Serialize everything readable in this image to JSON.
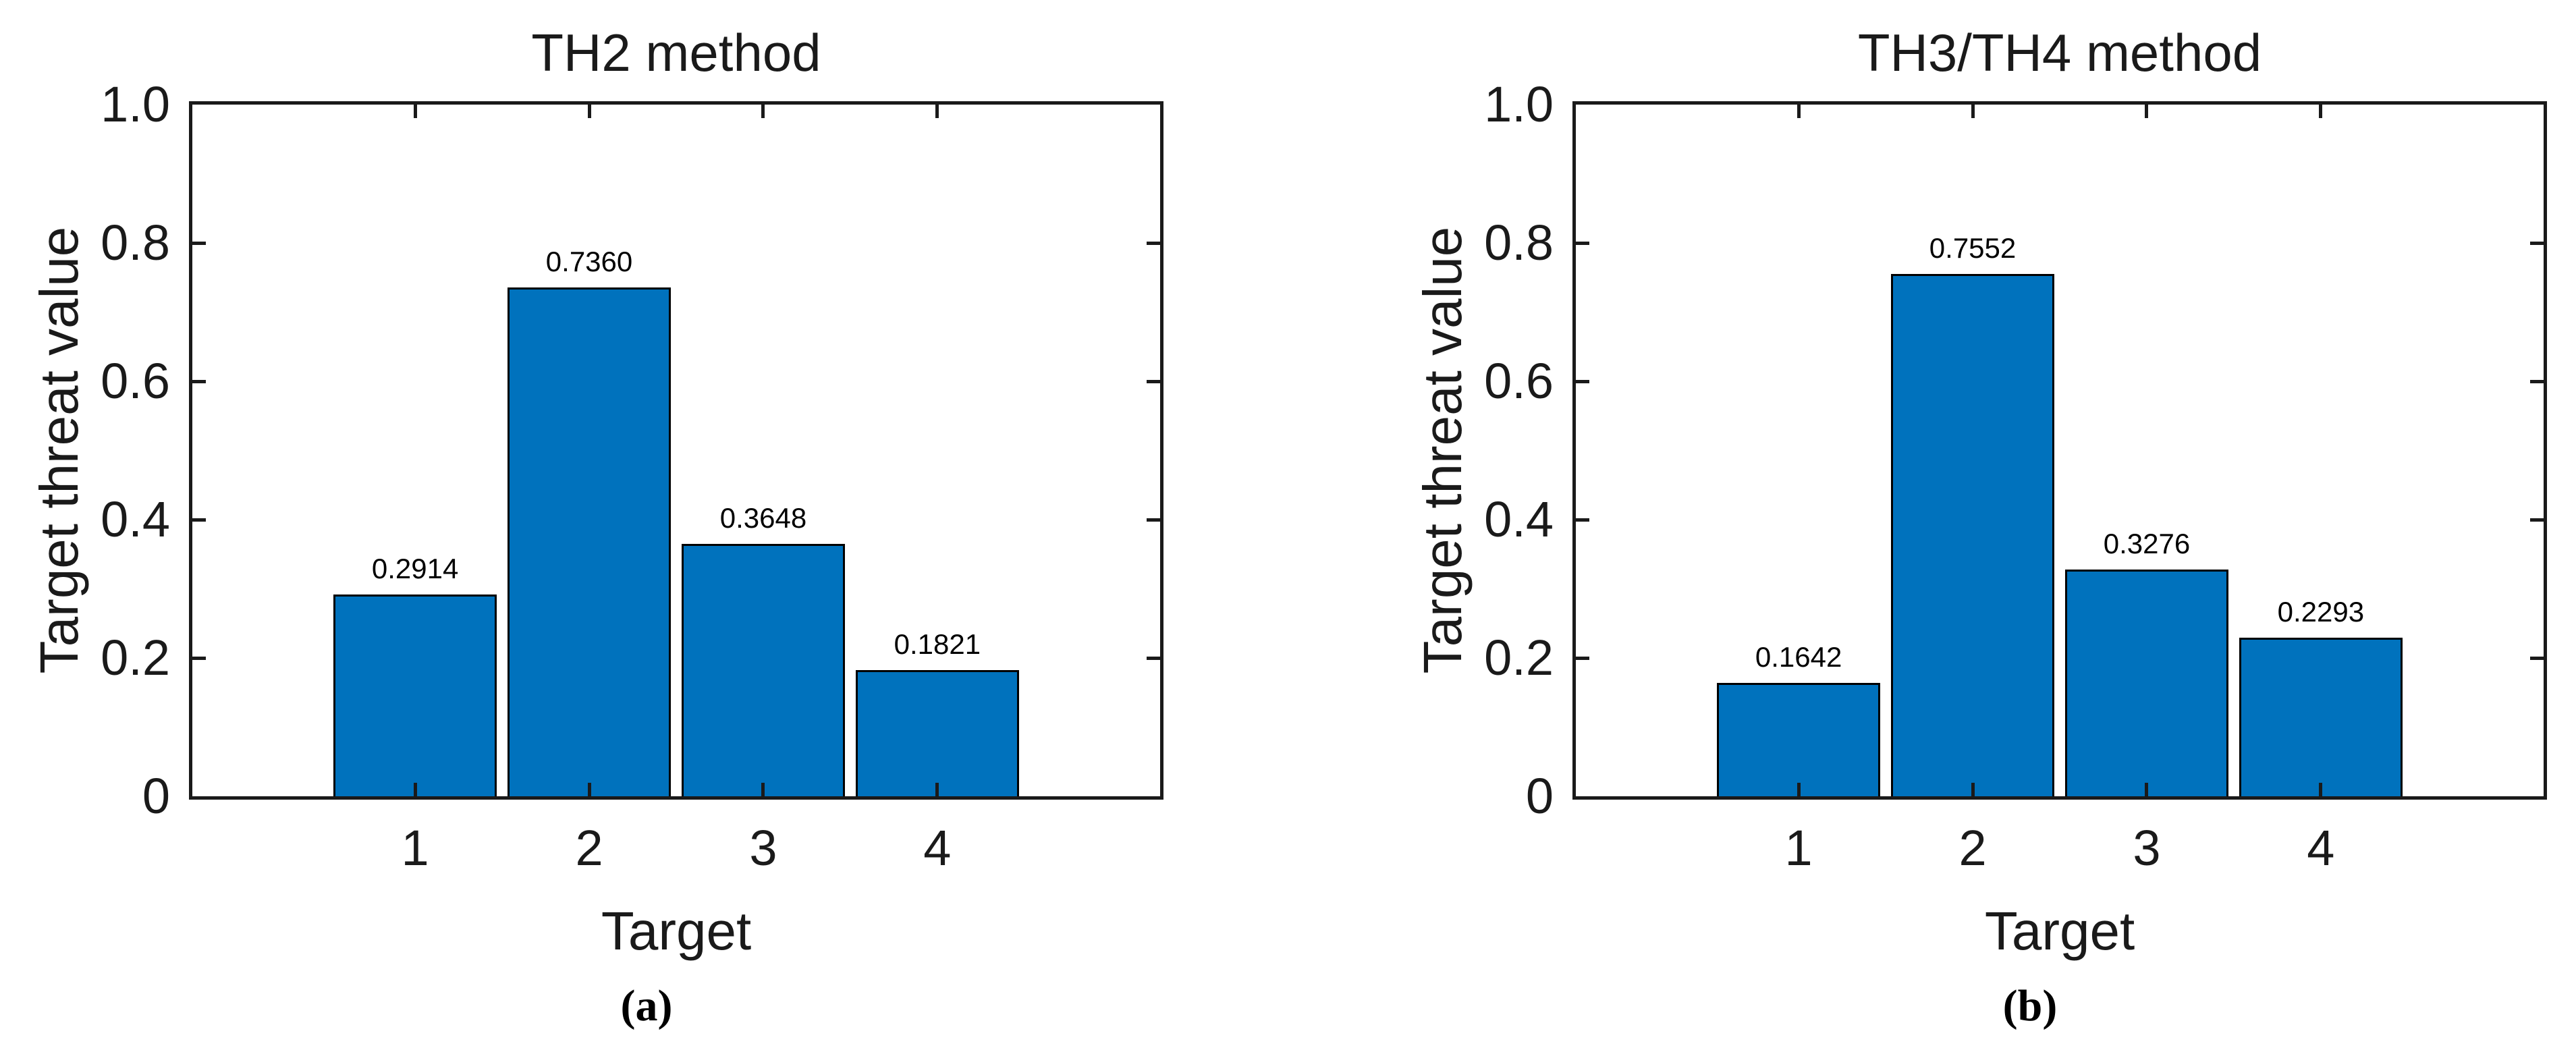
{
  "figure": {
    "background": "#ffffff"
  },
  "chart_data": [
    {
      "type": "bar",
      "title": "TH2 method",
      "xlabel": "Target",
      "ylabel": "Target threat value",
      "figure_label": "(a)",
      "categories": [
        "1",
        "2",
        "3",
        "4"
      ],
      "values": [
        0.2914,
        0.736,
        0.3648,
        0.1821
      ],
      "value_labels": [
        "0.2914",
        "0.7360",
        "0.3648",
        "0.1821"
      ],
      "ylim": [
        0,
        1.0
      ],
      "yticks": [
        0,
        0.2,
        0.4,
        0.6,
        0.8,
        1.0
      ],
      "ytick_labels": [
        "0",
        "0.2",
        "0.4",
        "0.6",
        "0.8",
        "1.0"
      ],
      "xlim": [
        -0.28,
        5.28
      ],
      "bar_width": 0.94,
      "bar_color": "#0072BD",
      "bar_edge_color": "#000000",
      "grid": false,
      "legend": null
    },
    {
      "type": "bar",
      "title": "TH3/TH4 method",
      "xlabel": "Target",
      "ylabel": "Target threat value",
      "figure_label": "(b)",
      "categories": [
        "1",
        "2",
        "3",
        "4"
      ],
      "values": [
        0.1642,
        0.7552,
        0.3276,
        0.2293
      ],
      "value_labels": [
        "0.1642",
        "0.7552",
        "0.3276",
        "0.2293"
      ],
      "ylim": [
        0,
        1.0
      ],
      "yticks": [
        0,
        0.2,
        0.4,
        0.6,
        0.8,
        1.0
      ],
      "ytick_labels": [
        "0",
        "0.2",
        "0.4",
        "0.6",
        "0.8",
        "1.0"
      ],
      "xlim": [
        -0.28,
        5.28
      ],
      "bar_width": 0.94,
      "bar_color": "#0072BD",
      "bar_edge_color": "#000000",
      "grid": false,
      "legend": null
    }
  ]
}
